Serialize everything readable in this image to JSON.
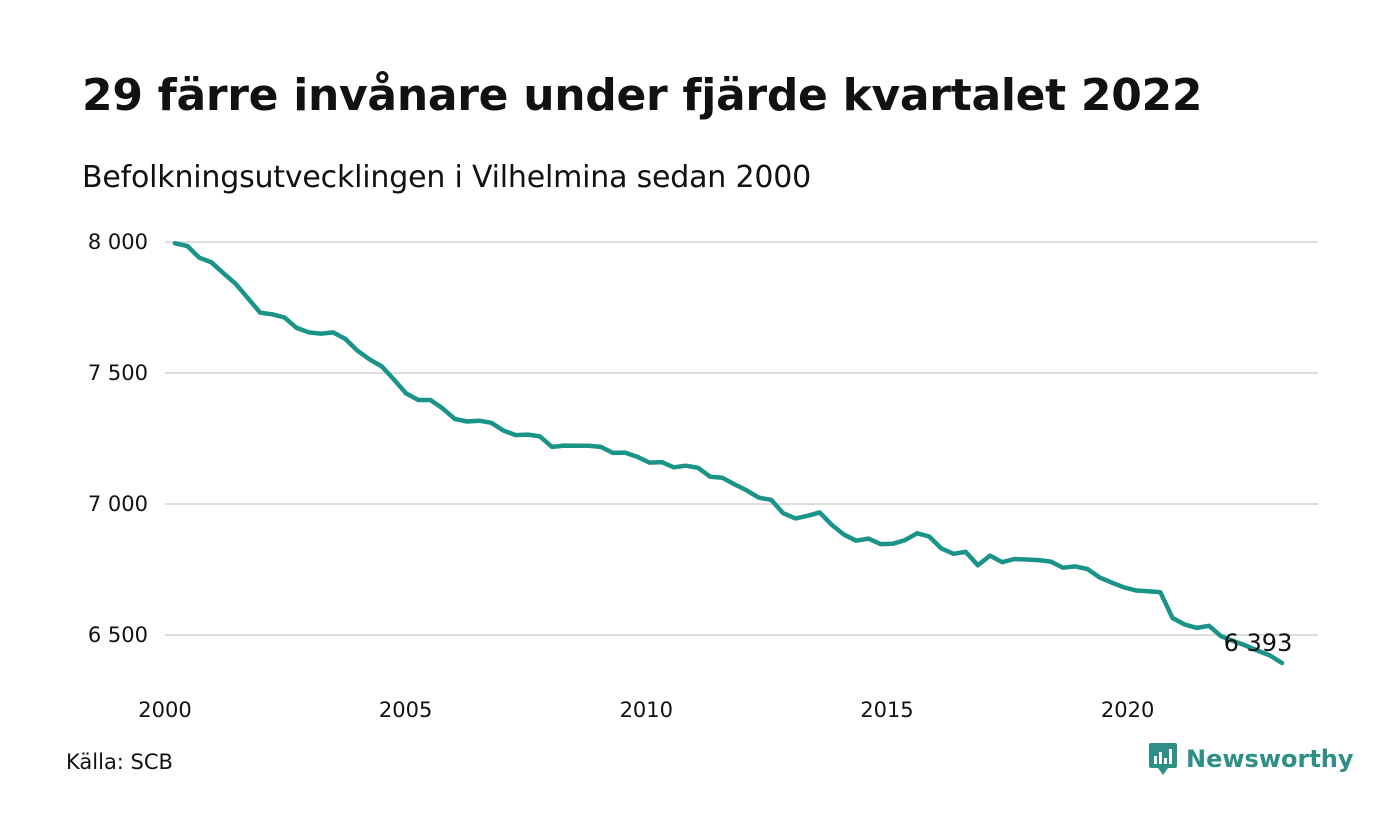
{
  "header": {
    "title": "29 färre invånare under fjärde kvartalet 2022",
    "subtitle": "Befolkningsutvecklingen i Vilhelmina sedan 2000"
  },
  "footer": {
    "source": "Källa: SCB",
    "brand": "Newsworthy"
  },
  "colors": {
    "line": "#1a9388",
    "grid": "#dddddd",
    "brand": "#2e8f86"
  },
  "icons": {
    "brand_logo": "newsworthy-logo-icon"
  },
  "chart_data": {
    "type": "line",
    "x_ticks": [
      2000,
      2005,
      2010,
      2015,
      2020
    ],
    "y_ticks": [
      6500,
      7000,
      7500,
      8000
    ],
    "y_tick_labels": [
      "6 500",
      "7 000",
      "7 500",
      "8 000"
    ],
    "xlim": [
      2000,
      2023
    ],
    "ylim": [
      6360,
      8000
    ],
    "grid": "horizontal",
    "end_label": "6 393",
    "series": [
      {
        "x": [
          2000.0,
          2000.25,
          2000.5,
          2000.75,
          2001.0,
          2001.25,
          2001.5,
          2001.75,
          2002.0,
          2002.25,
          2002.5,
          2002.75,
          2003.0,
          2003.25,
          2003.5,
          2003.75,
          2004.0,
          2004.25,
          2004.5,
          2004.75,
          2005.0,
          2005.25,
          2005.5,
          2005.75,
          2006.0,
          2006.25,
          2006.5,
          2006.75,
          2007.0,
          2007.25,
          2007.5,
          2007.75,
          2008.0,
          2008.25,
          2008.5,
          2008.75,
          2009.0,
          2009.25,
          2009.5,
          2009.75,
          2010.0,
          2010.25,
          2010.5,
          2010.75,
          2011.0,
          2011.25,
          2011.5,
          2011.75,
          2012.0,
          2012.25,
          2012.5,
          2012.75,
          2013.0,
          2013.25,
          2013.5,
          2013.75,
          2014.0,
          2014.25,
          2014.5,
          2014.75,
          2015.0,
          2015.25,
          2015.5,
          2015.75,
          2016.0,
          2016.25,
          2016.5,
          2016.75,
          2017.0,
          2017.25,
          2017.5,
          2017.75,
          2018.0,
          2018.25,
          2018.5,
          2018.75,
          2019.0,
          2019.25,
          2019.5,
          2019.75,
          2020.0,
          2020.25,
          2020.5,
          2020.75,
          2021.0,
          2021.25,
          2021.5,
          2021.75,
          2022.0,
          2022.25,
          2022.5,
          2022.75
        ],
        "values": [
          7995,
          7985,
          7940,
          7922,
          7880,
          7840,
          7785,
          7730,
          7724,
          7712,
          7672,
          7655,
          7650,
          7655,
          7630,
          7585,
          7552,
          7525,
          7475,
          7422,
          7397,
          7397,
          7365,
          7325,
          7315,
          7318,
          7310,
          7280,
          7263,
          7265,
          7258,
          7218,
          7223,
          7222,
          7222,
          7218,
          7195,
          7196,
          7180,
          7158,
          7160,
          7140,
          7146,
          7138,
          7104,
          7100,
          7075,
          7052,
          7024,
          7016,
          6965,
          6945,
          6955,
          6968,
          6920,
          6883,
          6860,
          6868,
          6847,
          6848,
          6862,
          6888,
          6876,
          6830,
          6810,
          6817,
          6766,
          6803,
          6778,
          6790,
          6788,
          6786,
          6780,
          6757,
          6762,
          6752,
          6720,
          6700,
          6682,
          6670,
          6667,
          6663,
          6565,
          6540,
          6527,
          6535,
          6495,
          6477,
          6460,
          6440,
          6422,
          6393
        ]
      }
    ]
  }
}
